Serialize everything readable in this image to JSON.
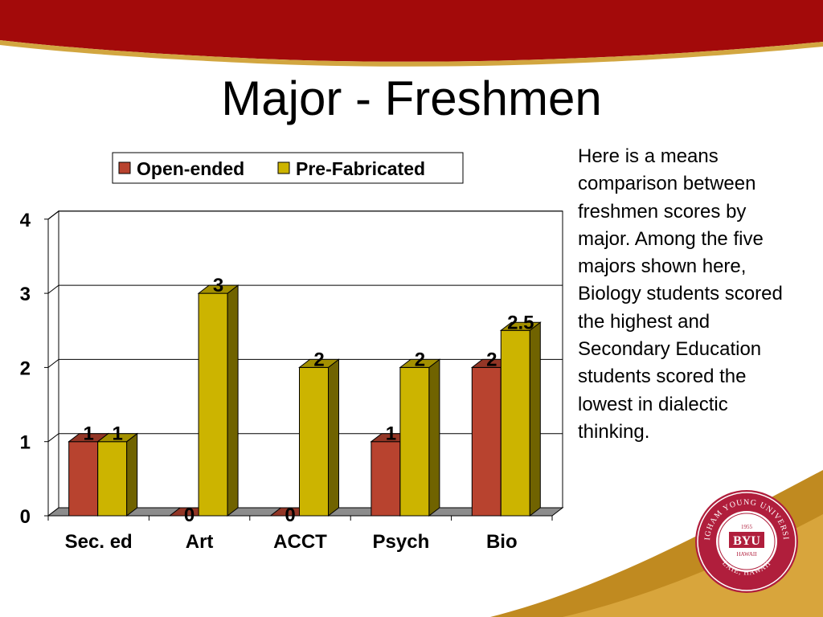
{
  "slide": {
    "title": "Major - Freshmen",
    "description": "Here is a means comparison between freshmen scores by major. Among the five majors shown here, Biology students scored the highest and Secondary Education students scored the lowest in dialectic thinking.",
    "logo_text": {
      "outer_top": "BRIGHAM YOUNG UNIVERSITY",
      "outer_bottom": "LAIE, HAWAII",
      "year": "1955",
      "name": "BYU",
      "sub": "HAWAII"
    }
  },
  "colors": {
    "banner": "#a30a0a",
    "swoosh": "#c08a20",
    "open_ended": "#b8432f",
    "pre_fabricated": "#ccb400"
  },
  "chart_data": {
    "type": "bar",
    "categories": [
      "Sec. ed",
      "Art",
      "ACCT",
      "Psych",
      "Bio"
    ],
    "series": [
      {
        "name": "Open-ended",
        "values": [
          1,
          0,
          0,
          1,
          2
        ],
        "labels": [
          "1",
          "0",
          "0",
          "1",
          "2"
        ]
      },
      {
        "name": "Pre-Fabricated",
        "values": [
          1,
          3,
          2,
          2,
          2.5
        ],
        "labels": [
          "1",
          "3",
          "2",
          "2",
          "2.5"
        ]
      }
    ],
    "ylim": [
      0,
      4
    ],
    "yticks": [
      "0",
      "1",
      "2",
      "3",
      "4"
    ],
    "grid": true,
    "legend": "top",
    "three_d": true
  }
}
